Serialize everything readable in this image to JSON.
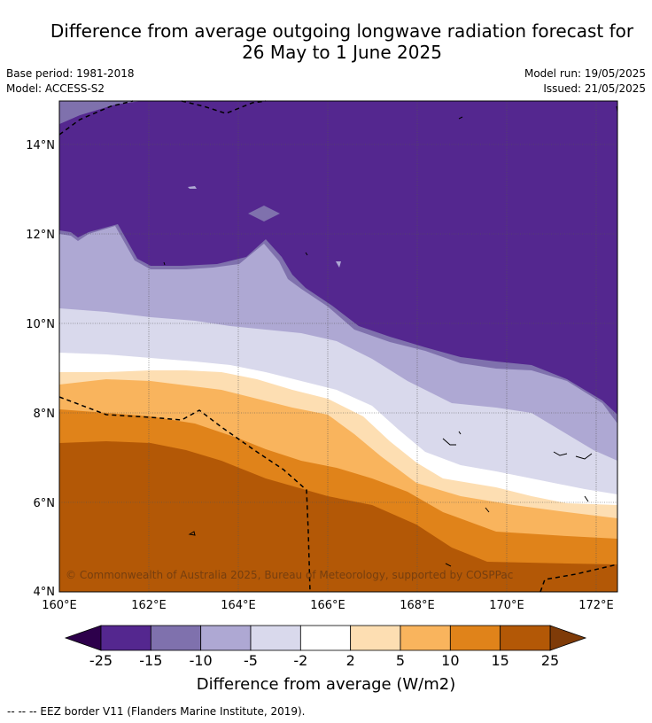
{
  "title_line1": "Difference from average outgoing longwave radiation forecast for",
  "title_line2": "26 May to 1 June 2025",
  "base_period": "Base period: 1981-2018",
  "model": "Model: ACCESS-S2",
  "model_run": "Model run: 19/05/2025",
  "issued": "Issued: 21/05/2025",
  "x_ticks": [
    "160°E",
    "162°E",
    "164°E",
    "166°E",
    "168°E",
    "170°E",
    "172°E"
  ],
  "y_ticks": [
    "14°N",
    "12°N",
    "10°N",
    "8°N",
    "6°N",
    "4°N"
  ],
  "copyright": "© Commonwealth of Australia 2025, Bureau of Meteorology, supported by COSPPac",
  "colorbar": {
    "title": "Difference from average (W/m2)",
    "labels": [
      "-25",
      "-15",
      "-10",
      "-5",
      "-2",
      "2",
      "5",
      "10",
      "15",
      "25"
    ],
    "colors": [
      "#54278f",
      "#7f71ad",
      "#aea8d3",
      "#d9d9ec",
      "#ffffff",
      "#fddeb2",
      "#f9b45d",
      "#e0831a",
      "#b35806"
    ],
    "under_color": "#2d004b",
    "over_color": "#7f3b08"
  },
  "footnote": "--  --  -- EEZ border V11 (Flanders Marine Institute, 2019)."
}
